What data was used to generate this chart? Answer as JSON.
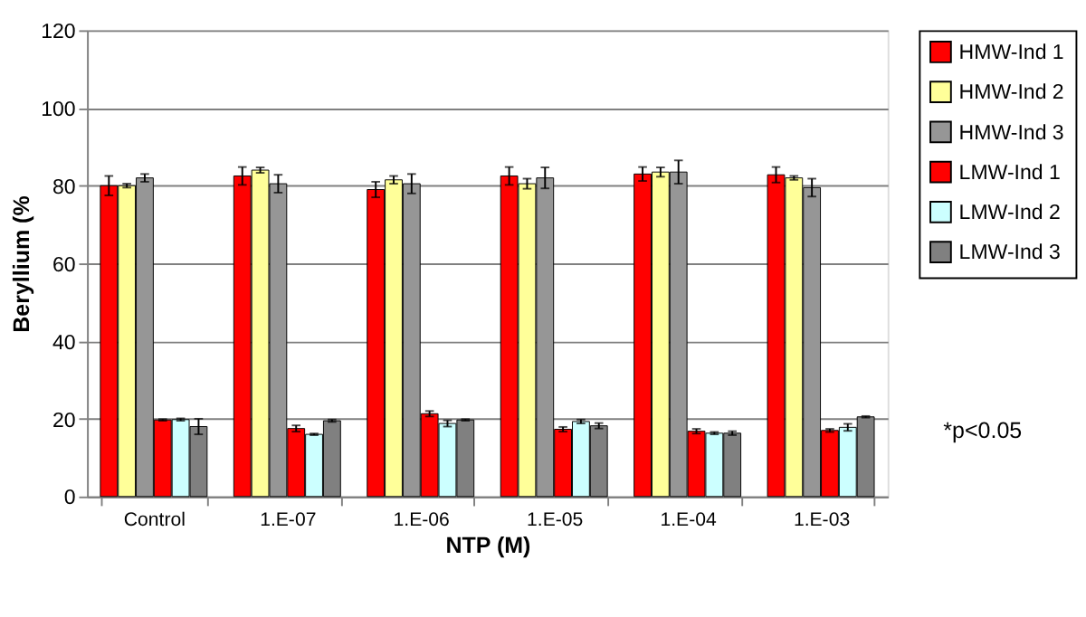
{
  "chart_data": {
    "type": "bar",
    "xlabel": "NTP (M)",
    "ylabel": "Beryllium (%",
    "categories": [
      "Control",
      "1.E-07",
      "1.E-06",
      "1.E-05",
      "1.E-04",
      "1.E-03"
    ],
    "series": [
      {
        "name": "HMW-Ind 1",
        "color": "#ff0000",
        "values": [
          80,
          82.5,
          79,
          82.5,
          83,
          82.8
        ],
        "errors": [
          2.5,
          2.3,
          2,
          2.3,
          1.8,
          2
        ]
      },
      {
        "name": "HMW-Ind 2",
        "color": "#ffff99",
        "values": [
          80,
          84,
          81.5,
          80.5,
          83.5,
          82
        ],
        "errors": [
          0.5,
          0.7,
          1,
          1.3,
          1.2,
          0.5
        ]
      },
      {
        "name": "HMW-Ind 3",
        "color": "#969696",
        "values": [
          82,
          80.5,
          80.5,
          82,
          83.5,
          79.5
        ],
        "errors": [
          1,
          2.3,
          2.5,
          2.7,
          3,
          2.3
        ]
      },
      {
        "name": "LMW-Ind 1",
        "color": "#ff0000",
        "values": [
          19.7,
          17.5,
          21.3,
          17.3,
          16.8,
          17
        ],
        "errors": [
          0.2,
          0.8,
          0.7,
          0.6,
          0.6,
          0.4
        ]
      },
      {
        "name": "LMW-Ind 2",
        "color": "#ccffff",
        "values": [
          19.8,
          16,
          18.8,
          19.3,
          16.3,
          17.8
        ],
        "errors": [
          0.3,
          0.2,
          0.8,
          0.5,
          0.3,
          0.9
        ]
      },
      {
        "name": "LMW-Ind 3",
        "color": "#808080",
        "values": [
          18,
          19.5,
          19.7,
          18.2,
          16.3,
          20.5
        ],
        "errors": [
          2,
          0.3,
          0.2,
          0.7,
          0.5,
          0.2
        ]
      }
    ],
    "ylim": [
      0,
      120
    ],
    "yticks": [
      0,
      20,
      40,
      60,
      80,
      100,
      120
    ],
    "grid": "y",
    "legend": "right",
    "annotations": [
      "*p<0.05"
    ]
  }
}
